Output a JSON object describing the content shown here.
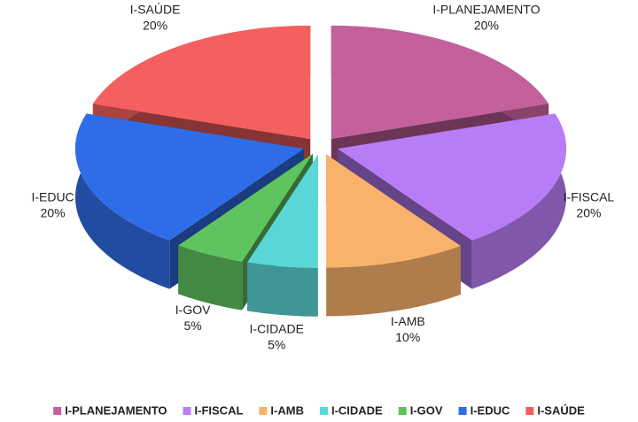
{
  "chart_data": {
    "type": "pie3d",
    "categories": [
      "I-PLANEJAMENTO",
      "I-FISCAL",
      "I-AMB",
      "I-CIDADE",
      "I-GOV",
      "I-EDUC",
      "I-SAÚDE"
    ],
    "values": [
      20,
      20,
      10,
      5,
      5,
      20,
      20
    ],
    "value_labels": [
      "20%",
      "20%",
      "10%",
      "5%",
      "5%",
      "20%",
      "20%"
    ],
    "colors": [
      "#c4609c",
      "#b87cf6",
      "#f9b26b",
      "#5bd6d6",
      "#5fc45f",
      "#2f6de8",
      "#f65f5f"
    ],
    "legend": "bottom"
  }
}
